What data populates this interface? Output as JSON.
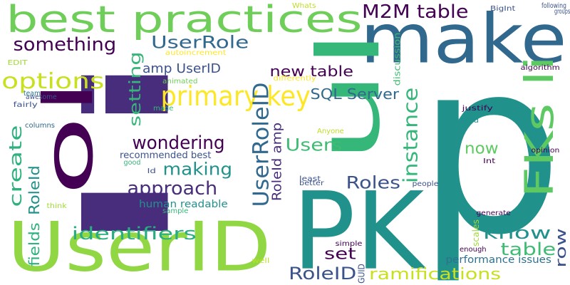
{
  "palette": {
    "background": "#ffffff",
    "dark_purple": "#440154",
    "indigo": "#472d7b",
    "blue": "#31688e",
    "teal": "#21918c",
    "green": "#35b779",
    "lime": "#90d743",
    "yellow": "#fde725"
  },
  "words": [
    {
      "text": "li",
      "color": "#472d7b",
      "rotate": true
    },
    {
      "text": "p",
      "color": "#21918c",
      "rotate": false
    },
    {
      "text": "PK",
      "color": "#21918c",
      "rotate": false
    },
    {
      "text": "UserID",
      "color": "#90d743",
      "rotate": false
    },
    {
      "text": "make",
      "color": "#31688e",
      "rotate": false
    },
    {
      "text": "best practices",
      "color": "#6fce5a",
      "rotate": false
    },
    {
      "text": "ol",
      "color": "#440154",
      "rotate": true
    },
    {
      "text": "ul",
      "color": "#35b779",
      "rotate": true
    },
    {
      "text": "FKs li",
      "color": "#5ec962",
      "rotate": true
    },
    {
      "text": "primary key",
      "color": "#fde725",
      "rotate": false
    },
    {
      "text": "UserRoleID",
      "color": "#31688e",
      "rotate": true
    },
    {
      "text": "M2M table",
      "color": "#440154",
      "rotate": false
    },
    {
      "text": "UserRole",
      "color": "#31688e",
      "rotate": false
    },
    {
      "text": "something",
      "color": "#440154",
      "rotate": false
    },
    {
      "text": "options",
      "color": "#c8e020",
      "rotate": false
    },
    {
      "text": "setting",
      "color": "#35b779",
      "rotate": true
    },
    {
      "text": "amp UserID",
      "color": "#3b528b",
      "rotate": false
    },
    {
      "text": "new table",
      "color": "#440154",
      "rotate": false
    },
    {
      "text": "SQL Server",
      "color": "#31688e",
      "rotate": false
    },
    {
      "text": "instance",
      "color": "#35b779",
      "rotate": true
    },
    {
      "text": "wondering",
      "color": "#440154",
      "rotate": false
    },
    {
      "text": "making",
      "color": "#21918c",
      "rotate": false
    },
    {
      "text": "Users",
      "color": "#3fbc73",
      "rotate": false
    },
    {
      "text": "approach",
      "color": "#472d7b",
      "rotate": false
    },
    {
      "text": "create",
      "color": "#2db27d",
      "rotate": true
    },
    {
      "text": "RoleId",
      "color": "#21918c",
      "rotate": true
    },
    {
      "text": "fields",
      "color": "#2db27d",
      "rotate": true
    },
    {
      "text": "Roles",
      "color": "#3b528b",
      "rotate": false
    },
    {
      "text": "RoleId amp",
      "color": "#472d7b",
      "rotate": true
    },
    {
      "text": "now",
      "color": "#5ec962",
      "rotate": false
    },
    {
      "text": "know",
      "color": "#21918c",
      "rotate": false
    },
    {
      "text": "table",
      "color": "#3fbc73",
      "rotate": false
    },
    {
      "text": "row",
      "color": "#3b528b",
      "rotate": true
    },
    {
      "text": "identifiers",
      "color": "#27ad81",
      "rotate": false
    },
    {
      "text": "set",
      "color": "#440154",
      "rotate": false
    },
    {
      "text": "RoleID",
      "color": "#3b528b",
      "rotate": false
    },
    {
      "text": "ramifications",
      "color": "#c8e020",
      "rotate": false
    },
    {
      "text": "performance issues",
      "color": "#2c728e",
      "rotate": false
    },
    {
      "text": "human readable",
      "color": "#21918c",
      "rotate": false
    },
    {
      "text": "recommended best",
      "color": "#3b528b",
      "rotate": false
    },
    {
      "text": "autoincrement",
      "color": "#fde725",
      "rotate": false
    },
    {
      "text": "Whats",
      "color": "#bddf26",
      "rotate": false
    },
    {
      "text": "BigInt",
      "color": "#3b528b",
      "rotate": false
    },
    {
      "text": "following",
      "color": "#3b528b",
      "rotate": false
    },
    {
      "text": "groups",
      "color": "#3b528b",
      "rotate": false
    },
    {
      "text": "algorithm",
      "color": "#440154",
      "rotate": false
    },
    {
      "text": "discussion",
      "color": "#3fbc73",
      "rotate": true
    },
    {
      "text": "differently",
      "color": "#fde725",
      "rotate": false
    },
    {
      "text": "animated",
      "color": "#6ece58",
      "rotate": false
    },
    {
      "text": "made",
      "color": "#35b779",
      "rotate": false
    },
    {
      "text": "EDIT",
      "color": "#a0da39",
      "rotate": false
    },
    {
      "text": "team",
      "color": "#2c728e",
      "rotate": false
    },
    {
      "text": "awesome",
      "color": "#3b528b",
      "rotate": false
    },
    {
      "text": "fairly",
      "color": "#3b528b",
      "rotate": false
    },
    {
      "text": "columns",
      "color": "#31688e",
      "rotate": false
    },
    {
      "text": "good",
      "color": "#35b779",
      "rotate": false
    },
    {
      "text": "Id",
      "color": "#3b528b",
      "rotate": false
    },
    {
      "text": "Anyone",
      "color": "#bddf26",
      "rotate": false
    },
    {
      "text": "least",
      "color": "#3b528b",
      "rotate": false
    },
    {
      "text": "better",
      "color": "#3b528b",
      "rotate": false
    },
    {
      "text": "people",
      "color": "#3b528b",
      "rotate": false
    },
    {
      "text": "justify",
      "color": "#440154",
      "rotate": false
    },
    {
      "text": "treated",
      "color": "#21918c",
      "rotate": false
    },
    {
      "text": "opinion",
      "color": "#440154",
      "rotate": false
    },
    {
      "text": "Int",
      "color": "#440154",
      "rotate": false
    },
    {
      "text": "generate",
      "color": "#440154",
      "rotate": false
    },
    {
      "text": "scales",
      "color": "#a0da39",
      "rotate": true
    },
    {
      "text": "enough",
      "color": "#440154",
      "rotate": false
    },
    {
      "text": "simple",
      "color": "#440154",
      "rotate": false
    },
    {
      "text": "GUID",
      "color": "#3b528b",
      "rotate": true
    },
    {
      "text": "well",
      "color": "#bddf26",
      "rotate": false
    },
    {
      "text": "think",
      "color": "#a0da39",
      "rotate": false
    },
    {
      "text": "sample",
      "color": "#35b779",
      "rotate": false
    }
  ]
}
